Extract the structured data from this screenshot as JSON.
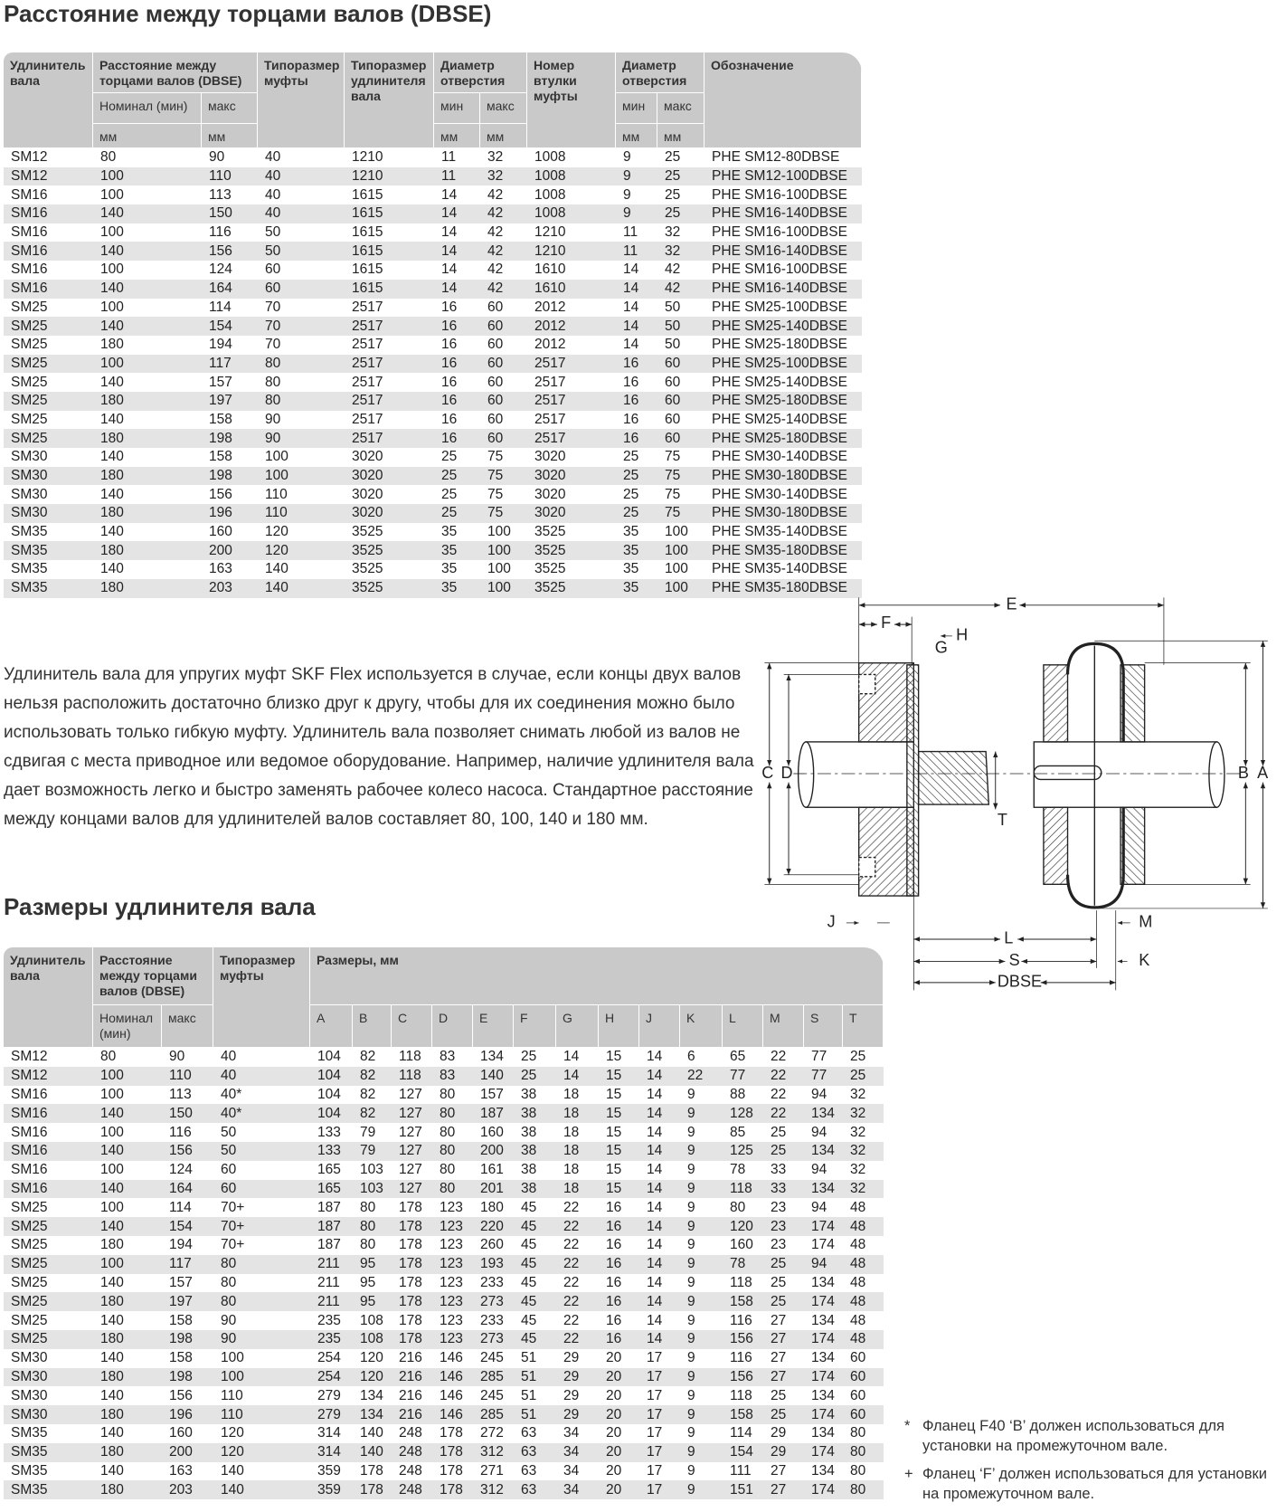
{
  "title": "Расстояние между торцами валов (DBSE)",
  "table1": {
    "header": [
      [
        "Удлинитель вала",
        "Расстояние между торцами валов (DBSE)",
        "Типоразмер муфты",
        "Типоразмер удлинителя вала",
        "Диаметр отверстия",
        "Номер втулки муфты",
        "Диаметр отверстия",
        "Обозначение"
      ],
      [
        "Номинал (мин)",
        "макс",
        "мин",
        "макс",
        "мин",
        "макс"
      ],
      [
        "мм",
        "мм",
        "мм",
        "мм",
        "мм",
        "мм"
      ]
    ],
    "rows": [
      [
        "SM12",
        "80",
        "90",
        "40",
        "1210",
        "11",
        "32",
        "1008",
        "9",
        "25",
        "PHE SM12-80DBSE"
      ],
      [
        "SM12",
        "100",
        "110",
        "40",
        "1210",
        "11",
        "32",
        "1008",
        "9",
        "25",
        "PHE SM12-100DBSE"
      ],
      [
        "SM16",
        "100",
        "113",
        "40",
        "1615",
        "14",
        "42",
        "1008",
        "9",
        "25",
        "PHE SM16-100DBSE"
      ],
      [
        "SM16",
        "140",
        "150",
        "40",
        "1615",
        "14",
        "42",
        "1008",
        "9",
        "25",
        "PHE SM16-140DBSE"
      ],
      [
        "SM16",
        "100",
        "116",
        "50",
        "1615",
        "14",
        "42",
        "1210",
        "11",
        "32",
        "PHE SM16-100DBSE"
      ],
      [
        "SM16",
        "140",
        "156",
        "50",
        "1615",
        "14",
        "42",
        "1210",
        "11",
        "32",
        "PHE SM16-140DBSE"
      ],
      [
        "SM16",
        "100",
        "124",
        "60",
        "1615",
        "14",
        "42",
        "1610",
        "14",
        "42",
        "PHE SM16-100DBSE"
      ],
      [
        "SM16",
        "140",
        "164",
        "60",
        "1615",
        "14",
        "42",
        "1610",
        "14",
        "42",
        "PHE SM16-140DBSE"
      ],
      [
        "SM25",
        "100",
        "114",
        "70",
        "2517",
        "16",
        "60",
        "2012",
        "14",
        "50",
        "PHE SM25-100DBSE"
      ],
      [
        "SM25",
        "140",
        "154",
        "70",
        "2517",
        "16",
        "60",
        "2012",
        "14",
        "50",
        "PHE SM25-140DBSE"
      ],
      [
        "SM25",
        "180",
        "194",
        "70",
        "2517",
        "16",
        "60",
        "2012",
        "14",
        "50",
        "PHE SM25-180DBSE"
      ],
      [
        "SM25",
        "100",
        "117",
        "80",
        "2517",
        "16",
        "60",
        "2517",
        "16",
        "60",
        "PHE SM25-100DBSE"
      ],
      [
        "SM25",
        "140",
        "157",
        "80",
        "2517",
        "16",
        "60",
        "2517",
        "16",
        "60",
        "PHE SM25-140DBSE"
      ],
      [
        "SM25",
        "180",
        "197",
        "80",
        "2517",
        "16",
        "60",
        "2517",
        "16",
        "60",
        "PHE SM25-180DBSE"
      ],
      [
        "SM25",
        "140",
        "158",
        "90",
        "2517",
        "16",
        "60",
        "2517",
        "16",
        "60",
        "PHE SM25-140DBSE"
      ],
      [
        "SM25",
        "180",
        "198",
        "90",
        "2517",
        "16",
        "60",
        "2517",
        "16",
        "60",
        "PHE SM25-180DBSE"
      ],
      [
        "SM30",
        "140",
        "158",
        "100",
        "3020",
        "25",
        "75",
        "3020",
        "25",
        "75",
        "PHE SM30-140DBSE"
      ],
      [
        "SM30",
        "180",
        "198",
        "100",
        "3020",
        "25",
        "75",
        "3020",
        "25",
        "75",
        "PHE SM30-180DBSE"
      ],
      [
        "SM30",
        "140",
        "156",
        "110",
        "3020",
        "25",
        "75",
        "3020",
        "25",
        "75",
        "PHE SM30-140DBSE"
      ],
      [
        "SM30",
        "180",
        "196",
        "110",
        "3020",
        "25",
        "75",
        "3020",
        "25",
        "75",
        "PHE SM30-180DBSE"
      ],
      [
        "SM35",
        "140",
        "160",
        "120",
        "3525",
        "35",
        "100",
        "3525",
        "35",
        "100",
        "PHE SM35-140DBSE"
      ],
      [
        "SM35",
        "180",
        "200",
        "120",
        "3525",
        "35",
        "100",
        "3525",
        "35",
        "100",
        "PHE SM35-180DBSE"
      ],
      [
        "SM35",
        "140",
        "163",
        "140",
        "3525",
        "35",
        "100",
        "3525",
        "35",
        "100",
        "PHE SM35-140DBSE"
      ],
      [
        "SM35",
        "180",
        "203",
        "140",
        "3525",
        "35",
        "100",
        "3525",
        "35",
        "100",
        "PHE SM35-180DBSE"
      ]
    ]
  },
  "description": "Удлинитель вала для упругих муфт SKF Flex используется в случае, если концы двух валов нельзя расположить достаточно близко друг к другу, чтобы для их соединения можно было использовать только гибкую муфту. Удлинитель вала позволяет снимать любой из валов не сдвигая с места приводное или ведомое оборудование. Например, наличие удлинителя вала дает возможность легко и быстро заменять рабочее колесо насоса. Стандартное расстояние между концами валов для удлинителей валов составляет 80, 100, 140 и 180 мм.",
  "title2": "Размеры удлинителя вала",
  "table2": {
    "header": [
      [
        "Удлинитель вала",
        "Расстояние между торцами валов (DBSE)",
        "Типоразмер муфты",
        "Размеры, мм"
      ],
      [
        "Номинал (мин)",
        "макс",
        "A",
        "B",
        "C",
        "D",
        "E",
        "F",
        "G",
        "H",
        "J",
        "K",
        "L",
        "M",
        "S",
        "T"
      ]
    ],
    "rows": [
      [
        "SM12",
        "80",
        "90",
        "40",
        "104",
        "82",
        "118",
        "83",
        "134",
        "25",
        "14",
        "15",
        "14",
        "6",
        "65",
        "22",
        "77",
        "25"
      ],
      [
        "SM12",
        "100",
        "110",
        "40",
        "104",
        "82",
        "118",
        "83",
        "140",
        "25",
        "14",
        "15",
        "14",
        "22",
        "77",
        "22",
        "77",
        "25"
      ],
      [
        "SM16",
        "100",
        "113",
        "40*",
        "104",
        "82",
        "127",
        "80",
        "157",
        "38",
        "18",
        "15",
        "14",
        "9",
        "88",
        "22",
        "94",
        "32"
      ],
      [
        "SM16",
        "140",
        "150",
        "40*",
        "104",
        "82",
        "127",
        "80",
        "187",
        "38",
        "18",
        "15",
        "14",
        "9",
        "128",
        "22",
        "134",
        "32"
      ],
      [
        "SM16",
        "100",
        "116",
        "50",
        "133",
        "79",
        "127",
        "80",
        "160",
        "38",
        "18",
        "15",
        "14",
        "9",
        "85",
        "25",
        "94",
        "32"
      ],
      [
        "SM16",
        "140",
        "156",
        "50",
        "133",
        "79",
        "127",
        "80",
        "200",
        "38",
        "18",
        "15",
        "14",
        "9",
        "125",
        "25",
        "134",
        "32"
      ],
      [
        "SM16",
        "100",
        "124",
        "60",
        "165",
        "103",
        "127",
        "80",
        "161",
        "38",
        "18",
        "15",
        "14",
        "9",
        "78",
        "33",
        "94",
        "32"
      ],
      [
        "SM16",
        "140",
        "164",
        "60",
        "165",
        "103",
        "127",
        "80",
        "201",
        "38",
        "18",
        "15",
        "14",
        "9",
        "118",
        "33",
        "134",
        "32"
      ],
      [
        "SM25",
        "100",
        "114",
        "70+",
        "187",
        "80",
        "178",
        "123",
        "180",
        "45",
        "22",
        "16",
        "14",
        "9",
        "80",
        "23",
        "94",
        "48"
      ],
      [
        "SM25",
        "140",
        "154",
        "70+",
        "187",
        "80",
        "178",
        "123",
        "220",
        "45",
        "22",
        "16",
        "14",
        "9",
        "120",
        "23",
        "174",
        "48"
      ],
      [
        "SM25",
        "180",
        "194",
        "70+",
        "187",
        "80",
        "178",
        "123",
        "260",
        "45",
        "22",
        "16",
        "14",
        "9",
        "160",
        "23",
        "174",
        "48"
      ],
      [
        "SM25",
        "100",
        "117",
        "80",
        "211",
        "95",
        "178",
        "123",
        "193",
        "45",
        "22",
        "16",
        "14",
        "9",
        "78",
        "25",
        "94",
        "48"
      ],
      [
        "SM25",
        "140",
        "157",
        "80",
        "211",
        "95",
        "178",
        "123",
        "233",
        "45",
        "22",
        "16",
        "14",
        "9",
        "118",
        "25",
        "134",
        "48"
      ],
      [
        "SM25",
        "180",
        "197",
        "80",
        "211",
        "95",
        "178",
        "123",
        "273",
        "45",
        "22",
        "16",
        "14",
        "9",
        "158",
        "25",
        "174",
        "48"
      ],
      [
        "SM25",
        "140",
        "158",
        "90",
        "235",
        "108",
        "178",
        "123",
        "233",
        "45",
        "22",
        "16",
        "14",
        "9",
        "116",
        "27",
        "134",
        "48"
      ],
      [
        "SM25",
        "180",
        "198",
        "90",
        "235",
        "108",
        "178",
        "123",
        "273",
        "45",
        "22",
        "16",
        "14",
        "9",
        "156",
        "27",
        "174",
        "48"
      ],
      [
        "SM30",
        "140",
        "158",
        "100",
        "254",
        "120",
        "216",
        "146",
        "245",
        "51",
        "29",
        "20",
        "17",
        "9",
        "116",
        "27",
        "134",
        "60"
      ],
      [
        "SM30",
        "180",
        "198",
        "100",
        "254",
        "120",
        "216",
        "146",
        "285",
        "51",
        "29",
        "20",
        "17",
        "9",
        "156",
        "27",
        "174",
        "60"
      ],
      [
        "SM30",
        "140",
        "156",
        "110",
        "279",
        "134",
        "216",
        "146",
        "245",
        "51",
        "29",
        "20",
        "17",
        "9",
        "118",
        "25",
        "134",
        "60"
      ],
      [
        "SM30",
        "180",
        "196",
        "110",
        "279",
        "134",
        "216",
        "146",
        "285",
        "51",
        "29",
        "20",
        "17",
        "9",
        "158",
        "25",
        "174",
        "60"
      ],
      [
        "SM35",
        "140",
        "160",
        "120",
        "314",
        "140",
        "248",
        "178",
        "272",
        "63",
        "34",
        "20",
        "17",
        "9",
        "114",
        "29",
        "134",
        "80"
      ],
      [
        "SM35",
        "180",
        "200",
        "120",
        "314",
        "140",
        "248",
        "178",
        "312",
        "63",
        "34",
        "20",
        "17",
        "9",
        "154",
        "29",
        "174",
        "80"
      ],
      [
        "SM35",
        "140",
        "163",
        "140",
        "359",
        "178",
        "248",
        "178",
        "271",
        "63",
        "34",
        "20",
        "17",
        "9",
        "111",
        "27",
        "134",
        "80"
      ],
      [
        "SM35",
        "180",
        "203",
        "140",
        "359",
        "178",
        "248",
        "178",
        "312",
        "63",
        "34",
        "20",
        "17",
        "9",
        "151",
        "27",
        "174",
        "80"
      ]
    ]
  },
  "diagram": {
    "labels": {
      "E": "E",
      "F": "F",
      "H": "H",
      "G": "G",
      "C": "C",
      "D": "D",
      "B": "B",
      "A": "A",
      "T": "T",
      "J": "J",
      "L": "L",
      "M": "M",
      "S": "S",
      "K": "K",
      "DBSE": "DBSE"
    }
  },
  "footnotes": [
    {
      "marker": "*",
      "text": "Фланец F40 ‘B’ должен использоваться для установки на промежуточном вале."
    },
    {
      "marker": "+",
      "text": "Фланец ‘F’ должен использоваться для установки на промежуточном вале."
    }
  ]
}
